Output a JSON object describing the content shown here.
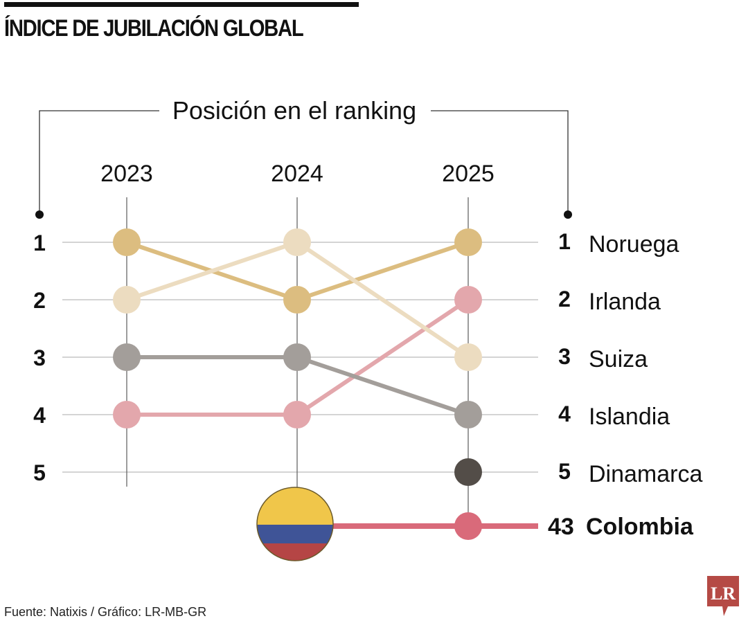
{
  "title": "ÍNDICE DE JUBILACIÓN GLOBAL",
  "source": "Fuente: Natixis / Gráfico: LR-MB-GR",
  "logo_text": "LR",
  "chart_data": {
    "type": "line",
    "subtitle": "Posición en el ranking",
    "categories": [
      "2023",
      "2024",
      "2025"
    ],
    "y_ticks": [
      "1",
      "2",
      "3",
      "4",
      "5"
    ],
    "y_inverted": true,
    "ylim": [
      1,
      5
    ],
    "grid": true,
    "series": [
      {
        "name": "Noruega",
        "rank_2025": "1",
        "values": [
          1,
          2,
          1
        ],
        "color": "#dcbd80"
      },
      {
        "name": "Irlanda",
        "rank_2025": "2",
        "values": [
          4,
          4,
          2
        ],
        "color": "#e3a7ac"
      },
      {
        "name": "Suiza",
        "rank_2025": "3",
        "values": [
          2,
          1,
          3
        ],
        "color": "#ecdcc0"
      },
      {
        "name": "Islandia",
        "rank_2025": "4",
        "values": [
          3,
          3,
          4
        ],
        "color": "#a39e9a"
      },
      {
        "name": "Dinamarca",
        "rank_2025": "5",
        "values": [
          null,
          null,
          5
        ],
        "color": "#534d48"
      }
    ],
    "highlight": {
      "name": "Colombia",
      "rank_2025": "43",
      "value": 43,
      "color": "#d96a7a",
      "flag_colors": [
        "#f0c64a",
        "#3f5497",
        "#b54545"
      ]
    }
  }
}
